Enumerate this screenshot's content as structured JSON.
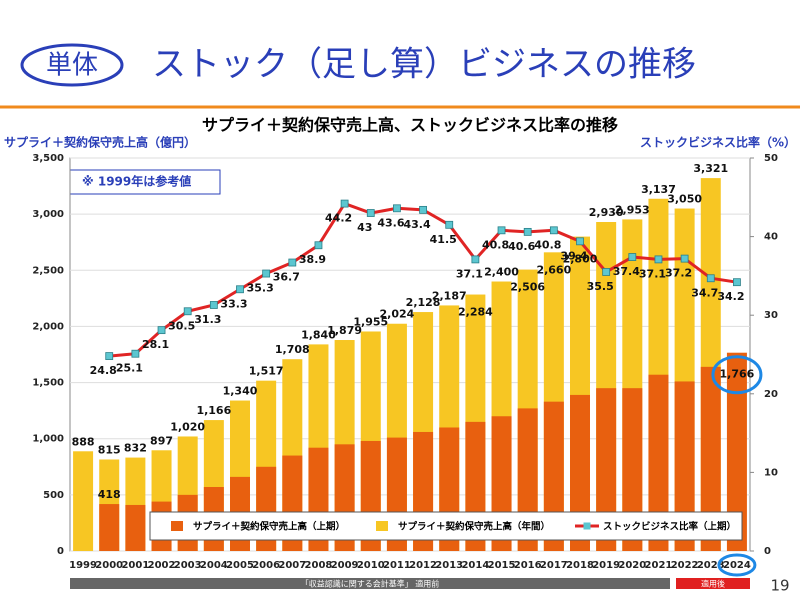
{
  "header": {
    "badge": "単体",
    "title": "ストック（足し算）ビジネスの推移"
  },
  "chart_data": {
    "type": "bar",
    "title": "サプライ＋契約保守売上高、ストックビジネス比率の推移",
    "y_label": "サプライ＋契約保守売上高（億円）",
    "y2_label": "ストックビジネス比率（%）",
    "note": "※ 1999年は参考値",
    "categories": [
      "1999",
      "2000",
      "2001",
      "2002",
      "2003",
      "2004",
      "2005",
      "2006",
      "2007",
      "2008",
      "2009",
      "2010",
      "2011",
      "2012",
      "2013",
      "2014",
      "2015",
      "2016",
      "2017",
      "2018",
      "2019",
      "2020",
      "2021",
      "2022",
      "2023",
      "2024"
    ],
    "series": [
      {
        "name": "サプライ＋契約保守売上高（上期）",
        "color": "#e8600f",
        "values": [
          null,
          418,
          410,
          440,
          500,
          570,
          660,
          750,
          850,
          920,
          950,
          980,
          1010,
          1060,
          1100,
          1150,
          1200,
          1270,
          1330,
          1390,
          1450,
          1450,
          1570,
          1510,
          1640,
          1766
        ],
        "value_labels": [
          null,
          "418",
          null,
          null,
          null,
          null,
          null,
          null,
          null,
          null,
          null,
          null,
          null,
          null,
          null,
          null,
          null,
          null,
          null,
          null,
          null,
          null,
          null,
          null,
          null,
          "1,766"
        ]
      },
      {
        "name": "サプライ＋契約保守売上高（年間）",
        "color": "#f7c623",
        "values": [
          888,
          815,
          832,
          897,
          1020,
          1166,
          1340,
          1517,
          1708,
          1840,
          1879,
          1955,
          2024,
          2128,
          2187,
          2284,
          2400,
          2506,
          2660,
          2800,
          2930,
          2953,
          3137,
          3050,
          3321,
          null
        ],
        "value_labels": [
          "888",
          "815",
          "832",
          "897",
          "1,020",
          "1,166",
          "1,340",
          "1,517",
          "1,708",
          "1,840",
          "1,879",
          "1,955",
          "2,024",
          "2,128",
          "2,187",
          "2,284",
          "2,400",
          "2,506",
          "2,660",
          "2,800",
          "2,930",
          "2,953",
          "3,137",
          "3,050",
          "3,321",
          null
        ]
      },
      {
        "name": "ストックビジネス比率（上期）",
        "color": "#e02424",
        "marker_color": "#5cc6d0",
        "type": "line",
        "axis": "y2",
        "values": [
          null,
          24.8,
          25.1,
          28.1,
          30.5,
          31.3,
          33.3,
          35.3,
          36.7,
          38.9,
          44.2,
          43.0,
          43.6,
          43.4,
          41.5,
          37.1,
          40.8,
          40.6,
          40.8,
          39.4,
          35.5,
          37.4,
          37.1,
          37.2,
          34.7,
          34.2
        ]
      }
    ],
    "ylim": [
      0,
      3500
    ],
    "yticks": [
      0,
      500,
      {
        "value": 1000,
        "label": "1,000"
      },
      {
        "value": 1500,
        "label": "1,500"
      },
      {
        "value": 2000,
        "label": "2,000"
      },
      {
        "value": 2500,
        "label": "2,500"
      },
      {
        "value": 3000,
        "label": "3,000"
      },
      {
        "value": 3500,
        "label": "3,500"
      }
    ],
    "y2lim": [
      0,
      50
    ],
    "y2ticks": [
      0,
      10,
      20,
      30,
      40,
      50
    ],
    "grid": true
  },
  "footer": {
    "before": "「収益認識に関する会計基準」 適用前",
    "after": "適用後",
    "page": "19"
  }
}
